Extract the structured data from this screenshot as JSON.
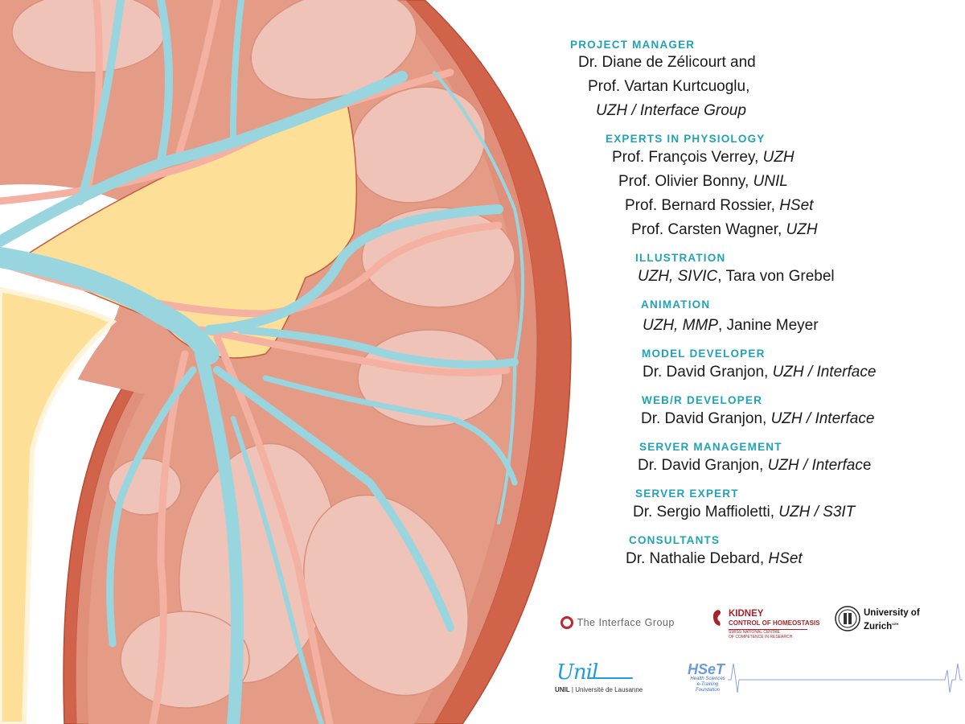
{
  "colors": {
    "accent": "#1fa3b5",
    "text": "#1a1a1a",
    "capsule": "#d0634a",
    "vessel_blue": "#98d5de",
    "vessel_red": "#f4b0a0",
    "pelvis": "#fddf97",
    "lobe": "#efc3b7"
  },
  "illustration": {
    "subject": "kidney cross-section"
  },
  "credits": [
    {
      "heading": "PROJECT MANAGER",
      "lines": [
        [
          {
            "t": "Dr. Diane de Zélicourt and",
            "i": false
          }
        ],
        [
          {
            "t": "Prof. Vartan Kurtcuoglu,",
            "i": false
          }
        ],
        [
          {
            "t": "UZH / Interface Group",
            "i": true
          }
        ]
      ]
    },
    {
      "heading": "EXPERTS IN PHYSIOLOGY",
      "lines": [
        [
          {
            "t": "Prof. François Verrey, ",
            "i": false
          },
          {
            "t": "UZH",
            "i": true
          }
        ],
        [
          {
            "t": "Prof. Olivier Bonny, ",
            "i": false
          },
          {
            "t": "UNIL",
            "i": true
          }
        ],
        [
          {
            "t": "Prof. Bernard Rossier, ",
            "i": false
          },
          {
            "t": "HSet",
            "i": true
          }
        ],
        [
          {
            "t": "Prof. Carsten Wagner, ",
            "i": false
          },
          {
            "t": "UZH",
            "i": true
          }
        ]
      ]
    },
    {
      "heading": "ILLUSTRATION",
      "lines": [
        [
          {
            "t": "UZH, SIVIC",
            "i": true
          },
          {
            "t": ", Tara von Grebel",
            "i": false
          }
        ]
      ]
    },
    {
      "heading": "ANIMATION",
      "lines": [
        [
          {
            "t": "UZH, MMP",
            "i": true
          },
          {
            "t": ", Janine Meyer",
            "i": false
          }
        ]
      ]
    },
    {
      "heading": "MODEL DEVELOPER",
      "lines": [
        [
          {
            "t": "Dr. David Granjon, ",
            "i": false
          },
          {
            "t": "UZH / Interface",
            "i": true
          }
        ]
      ]
    },
    {
      "heading": "WEB/R DEVELOPER",
      "lines": [
        [
          {
            "t": "Dr. David Granjon, ",
            "i": false
          },
          {
            "t": "UZH / Interface",
            "i": true
          }
        ]
      ]
    },
    {
      "heading": "SERVER MANAGEMENT",
      "lines": [
        [
          {
            "t": "Dr. David Granjon, ",
            "i": false
          },
          {
            "t": "UZH / Interfac",
            "i": true
          },
          {
            "t": "e",
            "i": false
          }
        ]
      ]
    },
    {
      "heading": "SERVER EXPERT",
      "lines": [
        [
          {
            "t": "Dr. Sergio Maffioletti, ",
            "i": false
          },
          {
            "t": "UZH / S3IT",
            "i": true
          }
        ]
      ]
    },
    {
      "heading": "CONSULTANTS",
      "lines": [
        [
          {
            "t": "Dr. Nathalie Debard, ",
            "i": false
          },
          {
            "t": "HSet",
            "i": true
          }
        ]
      ]
    }
  ],
  "logos": {
    "interface": {
      "name": "The Interface Group"
    },
    "kidney": {
      "name": "KIDNEY",
      "sub": "CONTROL OF HOMEOSTASIS",
      "small1": "SWISS NATIONAL CENTRE",
      "small2": "OF COMPETENCE IN RESEARCH"
    },
    "uzh": {
      "name1": "University of",
      "name2": "Zurich",
      "sup": "UZH"
    },
    "unil": {
      "script": "Unil",
      "bold": "UNIL",
      "rest": " | Université de Lausanne"
    },
    "hset": {
      "name": "HSeT",
      "l1": "Health Sciences",
      "l2": "e-Training",
      "l3": "Foundation"
    }
  }
}
